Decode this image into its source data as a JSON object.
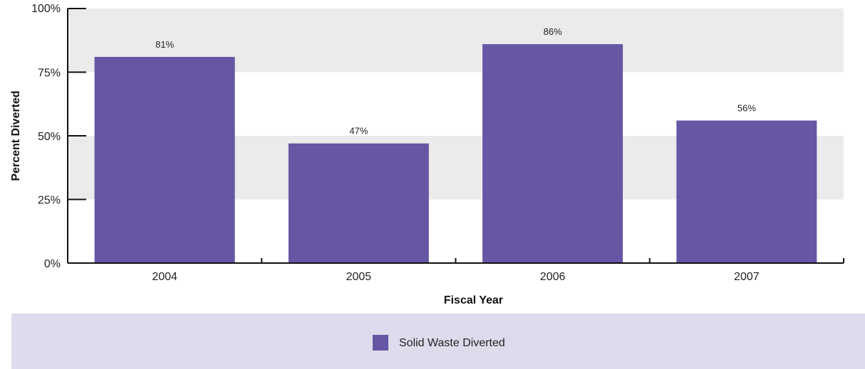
{
  "chart_data": {
    "type": "bar",
    "categories": [
      "2004",
      "2005",
      "2006",
      "2007"
    ],
    "series": [
      {
        "name": "Solid Waste Diverted",
        "values": [
          81,
          47,
          86,
          56
        ]
      }
    ],
    "data_labels": [
      "81%",
      "47%",
      "86%",
      "56%"
    ],
    "y_ticks": [
      0,
      25,
      50,
      75,
      100
    ],
    "y_tick_labels": [
      "0%",
      "25%",
      "50%",
      "75%",
      "100%"
    ],
    "xlabel": "Fiscal Year",
    "ylabel": "Percent Diverted",
    "ylim": [
      0,
      100
    ],
    "legend_position": "bottom",
    "colors": {
      "bar": "#6656a4",
      "band_dark": "#ebebeb",
      "band_light": "#f5f5f5",
      "legend_bg": "#dedbec",
      "axis": "#111111"
    }
  }
}
